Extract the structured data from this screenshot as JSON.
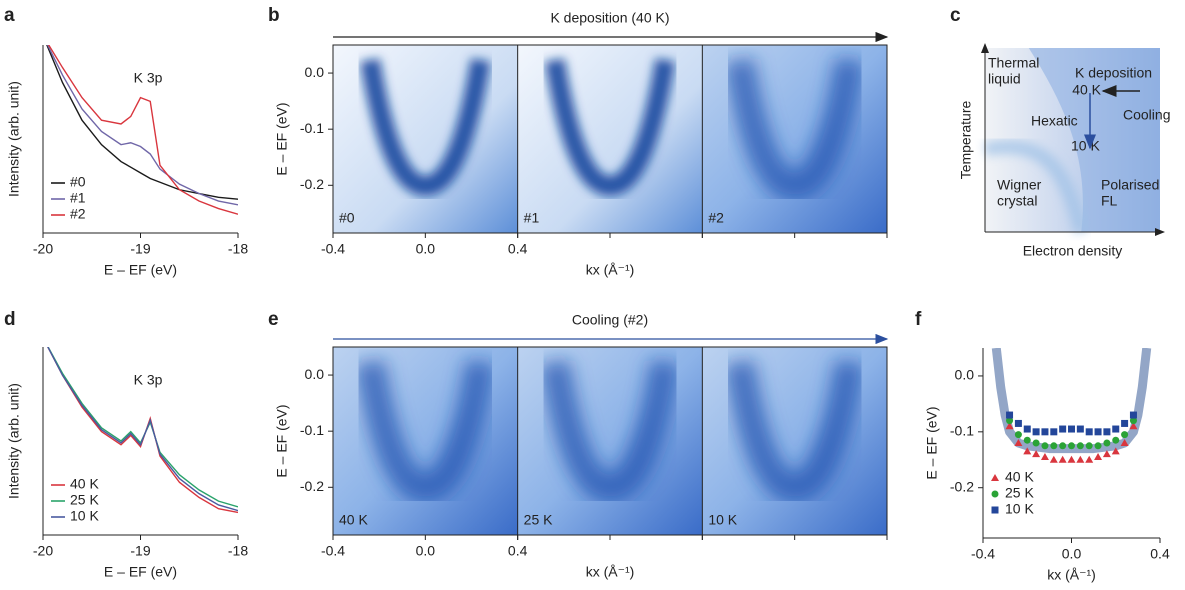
{
  "chart_data": [
    {
      "type": "line",
      "panel": "a",
      "annotation": "K 3p",
      "xlabel": "E – EF (eV)",
      "ylabel": "Intensity (arb. unit)",
      "x": [
        -20,
        -19.8,
        -19.6,
        -19.4,
        -19.2,
        -19.1,
        -19.0,
        -18.9,
        -18.8,
        -18.6,
        -18.4,
        -18.2,
        -18.0
      ],
      "xlim": [
        -20,
        -18
      ],
      "xticks": [
        -20,
        -19,
        -18
      ],
      "ylim": [
        0,
        1
      ],
      "legend": "lower left",
      "series": [
        {
          "name": "#0",
          "color": "#1a1a1a",
          "values": [
            1.05,
            0.8,
            0.6,
            0.47,
            0.38,
            0.35,
            0.32,
            0.29,
            0.27,
            0.23,
            0.21,
            0.19,
            0.18
          ]
        },
        {
          "name": "#1",
          "color": "#7067a8",
          "values": [
            1.05,
            0.84,
            0.66,
            0.54,
            0.47,
            0.48,
            0.46,
            0.42,
            0.34,
            0.26,
            0.21,
            0.17,
            0.15
          ]
        },
        {
          "name": "#2",
          "color": "#d9363e",
          "values": [
            1.05,
            0.88,
            0.72,
            0.6,
            0.58,
            0.62,
            0.72,
            0.7,
            0.36,
            0.23,
            0.17,
            0.13,
            0.1
          ]
        }
      ]
    },
    {
      "type": "heatmap",
      "panel": "b",
      "title": "K deposition (40 K)",
      "title_color": "#222222",
      "xlabel": "kx (Å⁻¹)",
      "ylabel": "E – EF (eV)",
      "panels": [
        "#0",
        "#1",
        "#2"
      ],
      "xlim": [
        -0.4,
        0.4
      ],
      "xticks": [
        -0.4,
        {
          "value": 0,
          "label": "0.0"
        },
        0.4
      ],
      "ylim": [
        -0.285,
        0.05
      ],
      "yticks": [
        {
          "value": 0,
          "label": "0.0"
        },
        -0.1,
        -0.2
      ]
    },
    {
      "type": "diagram",
      "panel": "c",
      "xlabel": "Electron density",
      "ylabel": "Temperature",
      "labels": [
        {
          "text": [
            "Thermal",
            "liquid"
          ],
          "color": "#8a8a8a"
        },
        {
          "text": [
            "K deposition"
          ],
          "color": "#111111"
        },
        {
          "text": [
            "40 K"
          ],
          "color": "#d9363e"
        },
        {
          "text": [
            "Hexatic"
          ],
          "color": "#111111"
        },
        {
          "text": [
            "Cooling"
          ],
          "color": "#3a5fb0"
        },
        {
          "text": [
            "10 K"
          ],
          "color": "#3a5fb0"
        },
        {
          "text": [
            "Wigner",
            "crystal"
          ],
          "color": "#8a8a8a"
        },
        {
          "text": [
            "Polarised",
            "FL"
          ],
          "color": "#6a6a6a"
        }
      ]
    },
    {
      "type": "line",
      "panel": "d",
      "annotation": "K 3p",
      "xlabel": "E – EF (eV)",
      "ylabel": "Intensity (arb. unit)",
      "x": [
        -20,
        -19.8,
        -19.6,
        -19.4,
        -19.2,
        -19.1,
        -19.0,
        -18.9,
        -18.8,
        -18.6,
        -18.4,
        -18.2,
        -18.0
      ],
      "xlim": [
        -20,
        -18
      ],
      "xticks": [
        -20,
        -19,
        -18
      ],
      "ylim": [
        0,
        1
      ],
      "legend": "lower left",
      "series": [
        {
          "name": "40 K",
          "color": "#d9363e",
          "values": [
            1.05,
            0.85,
            0.68,
            0.55,
            0.48,
            0.53,
            0.47,
            0.62,
            0.42,
            0.28,
            0.2,
            0.14,
            0.12
          ]
        },
        {
          "name": "25 K",
          "color": "#2aa36b",
          "values": [
            1.05,
            0.86,
            0.7,
            0.57,
            0.5,
            0.55,
            0.49,
            0.6,
            0.44,
            0.32,
            0.24,
            0.18,
            0.15
          ]
        },
        {
          "name": "10 K",
          "color": "#4a5aa0",
          "values": [
            1.05,
            0.85,
            0.69,
            0.56,
            0.49,
            0.54,
            0.48,
            0.61,
            0.43,
            0.3,
            0.22,
            0.16,
            0.13
          ]
        }
      ]
    },
    {
      "type": "heatmap",
      "panel": "e",
      "title": "Cooling (#2)",
      "title_color": "#2b4f9e",
      "xlabel": "kx (Å⁻¹)",
      "ylabel": "E – EF (eV)",
      "panels": [
        "40 K",
        "25 K",
        "10 K"
      ],
      "xlim": [
        -0.4,
        0.4
      ],
      "xticks": [
        -0.4,
        {
          "value": 0,
          "label": "0.0"
        },
        0.4
      ],
      "ylim": [
        -0.285,
        0.05
      ],
      "yticks": [
        {
          "value": 0,
          "label": "0.0"
        },
        -0.1,
        -0.2
      ]
    },
    {
      "type": "scatter",
      "panel": "f",
      "xlabel": "kx (Å⁻¹)",
      "ylabel": "E – EF (eV)",
      "xlim": [
        -0.4,
        0.4
      ],
      "xticks": [
        -0.4,
        {
          "value": 0,
          "label": "0.0"
        },
        0.4
      ],
      "ylim": [
        -0.29,
        0.05
      ],
      "yticks": [
        {
          "value": 0,
          "label": "0.0"
        },
        -0.1,
        -0.2
      ],
      "legend": "lower left",
      "fit_color": "#6f88b4",
      "fit_x": [
        -0.34,
        -0.32,
        -0.3,
        -0.28,
        -0.24,
        -0.2,
        -0.1,
        0,
        0.1,
        0.2,
        0.24,
        0.28,
        0.3,
        0.32,
        0.34
      ],
      "fit_y": [
        0.05,
        -0.02,
        -0.07,
        -0.1,
        -0.12,
        -0.125,
        -0.13,
        -0.13,
        -0.13,
        -0.125,
        -0.12,
        -0.1,
        -0.07,
        -0.02,
        0.05
      ],
      "x": [
        -0.28,
        -0.24,
        -0.2,
        -0.16,
        -0.12,
        -0.08,
        -0.04,
        0,
        0.04,
        0.08,
        0.12,
        0.16,
        0.2,
        0.24,
        0.28
      ],
      "series": [
        {
          "name": "40 K",
          "color": "#d9363e",
          "marker": "triangle",
          "values": [
            -0.09,
            -0.12,
            -0.135,
            -0.14,
            -0.145,
            -0.15,
            -0.15,
            -0.15,
            -0.15,
            -0.15,
            -0.145,
            -0.14,
            -0.135,
            -0.12,
            -0.09
          ]
        },
        {
          "name": "25 K",
          "color": "#2aa336",
          "marker": "circle",
          "values": [
            -0.08,
            -0.105,
            -0.115,
            -0.12,
            -0.125,
            -0.125,
            -0.125,
            -0.125,
            -0.125,
            -0.125,
            -0.125,
            -0.12,
            -0.115,
            -0.105,
            -0.08
          ]
        },
        {
          "name": "10 K",
          "color": "#23469a",
          "marker": "square",
          "values": [
            -0.07,
            -0.085,
            -0.095,
            -0.1,
            -0.1,
            -0.1,
            -0.095,
            -0.095,
            -0.095,
            -0.1,
            -0.1,
            -0.1,
            -0.095,
            -0.085,
            -0.07
          ]
        }
      ]
    }
  ]
}
